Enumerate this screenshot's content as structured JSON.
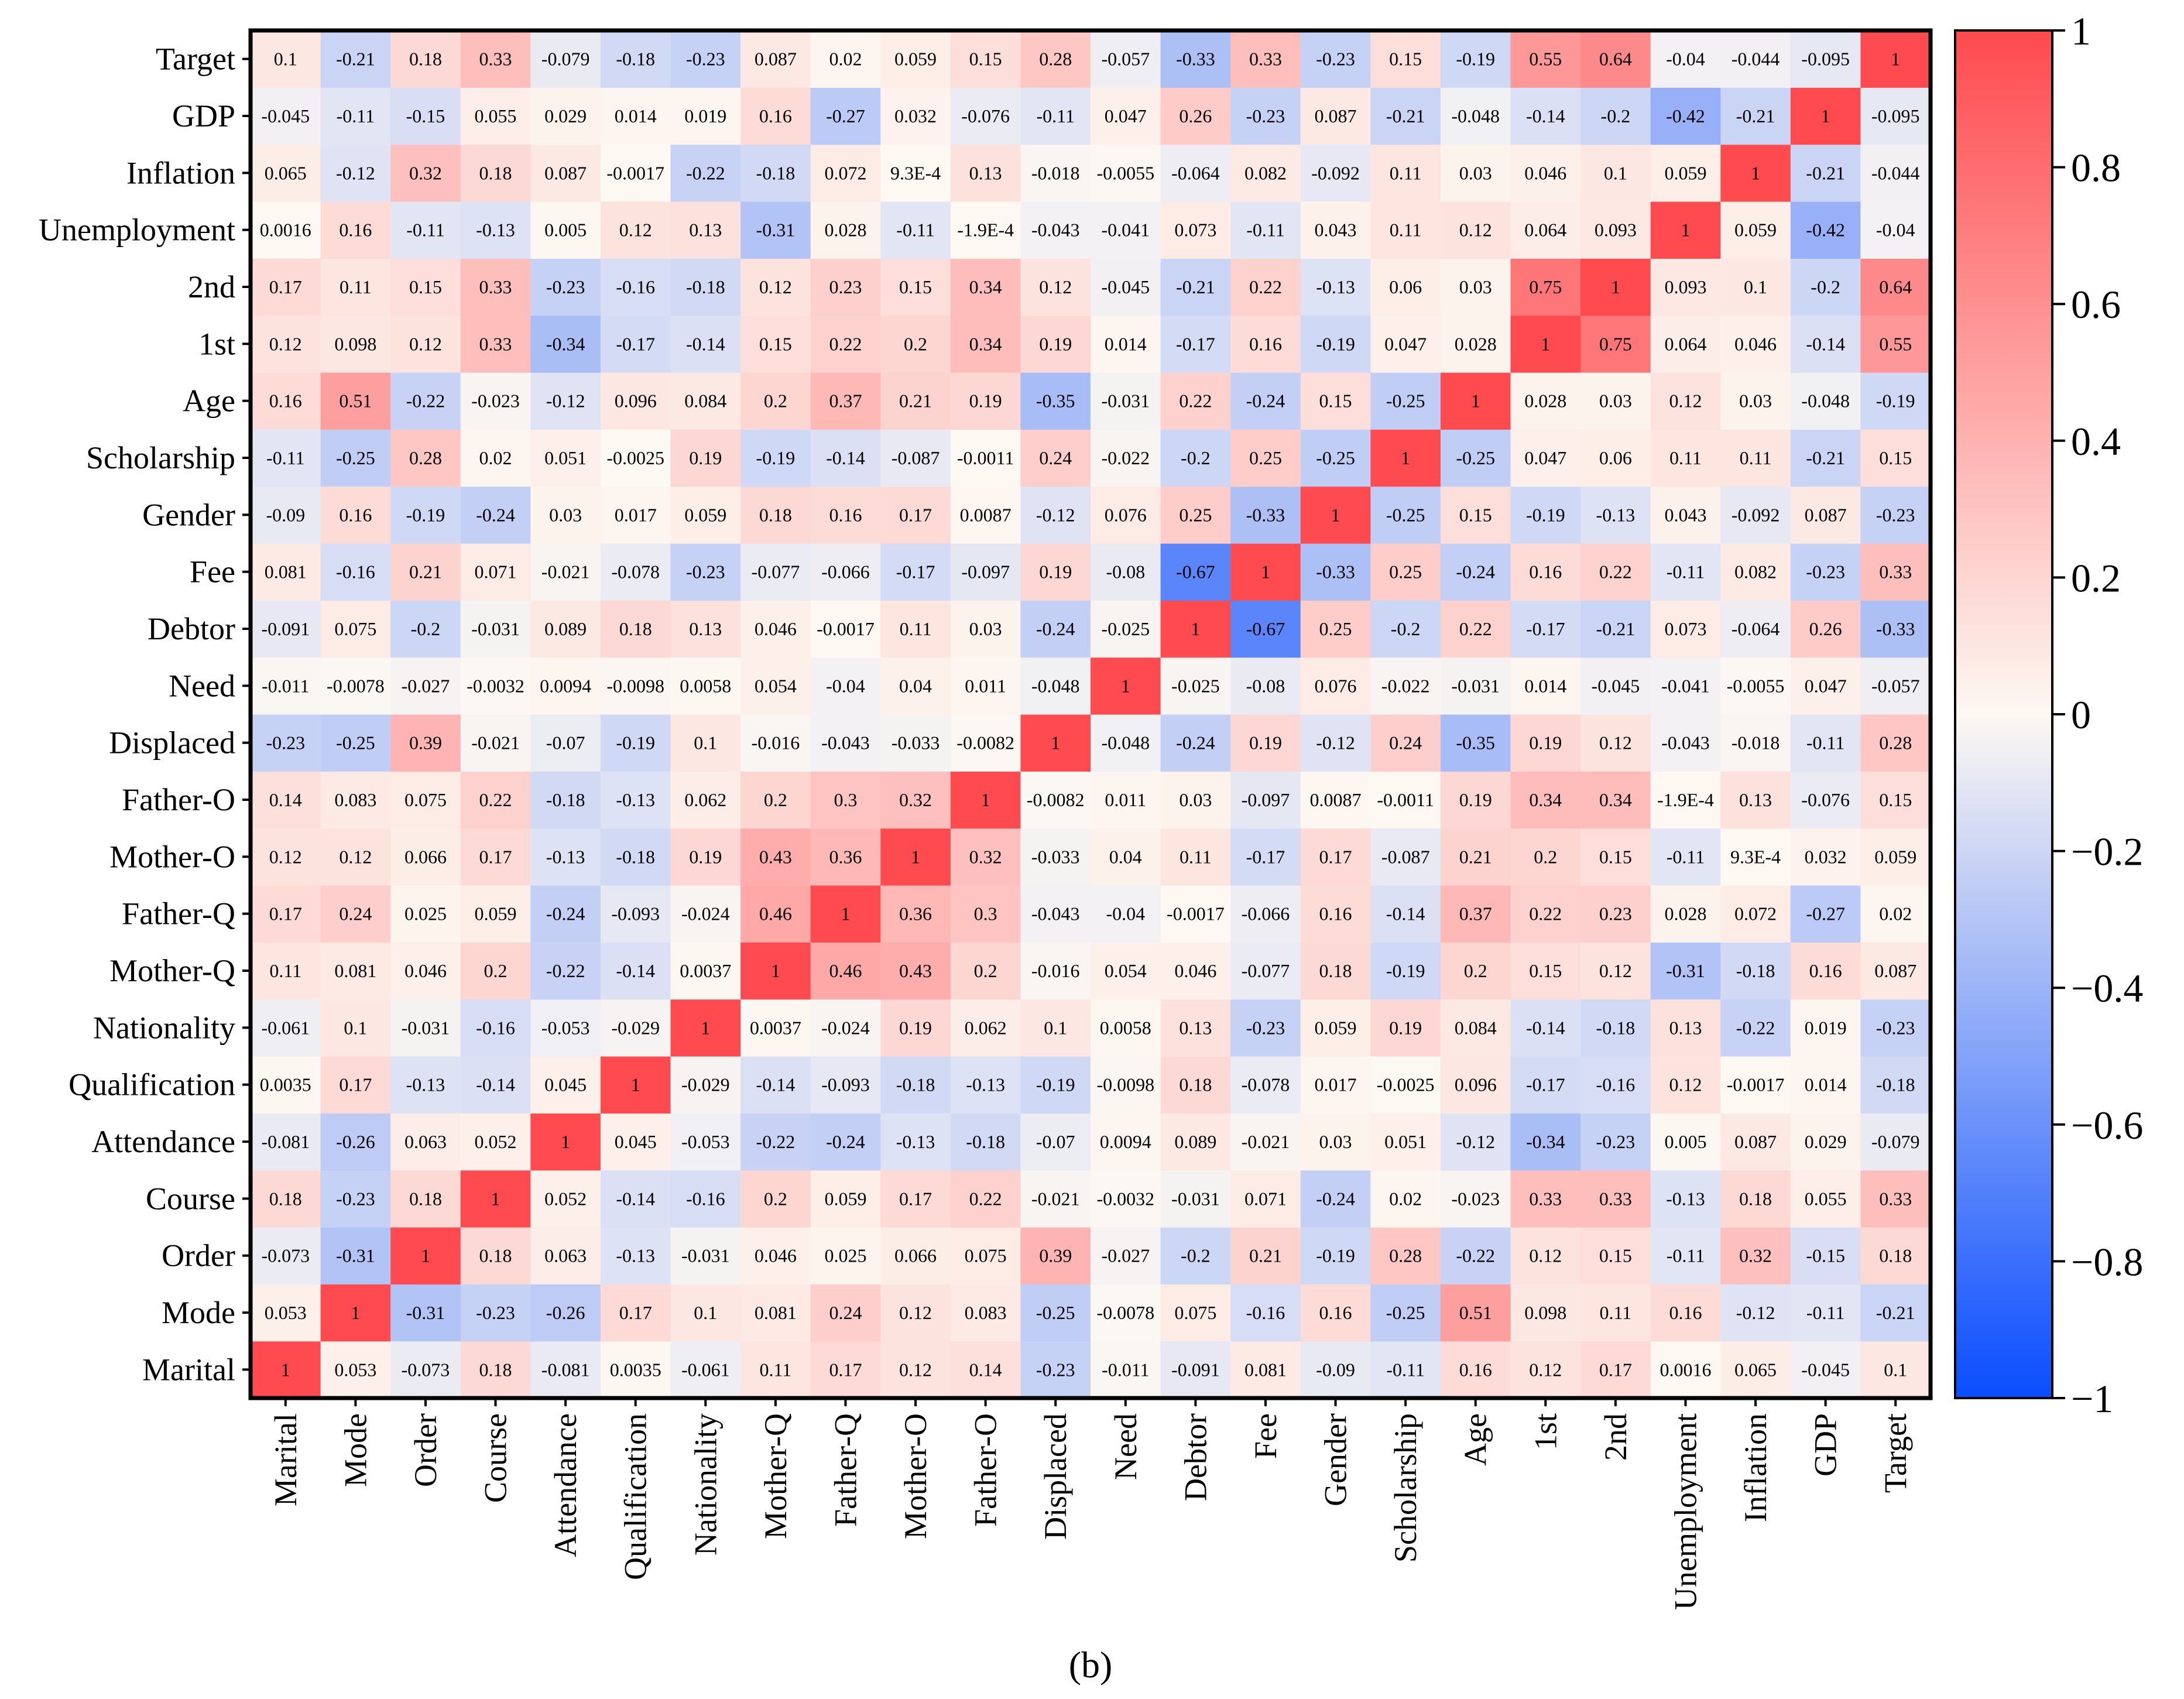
{
  "chart_data": {
    "type": "heatmap",
    "title": "",
    "xlabel": "",
    "ylabel": "",
    "caption": "(b)",
    "variables": [
      "Marital",
      "Mode",
      "Order",
      "Course",
      "Attendance",
      "Qualification",
      "Nationality",
      "Mother-Q",
      "Father-Q",
      "Mother-O",
      "Father-O",
      "Displaced",
      "Need",
      "Debtor",
      "Fee",
      "Gender",
      "Scholarship",
      "Age",
      "1st",
      "2nd",
      "Unemployment",
      "Inflation",
      "GDP",
      "Target"
    ],
    "x_order": "bottom axis left to right",
    "y_order": "left axis top to bottom reversed (Marital at bottom)",
    "value_range": [
      -1,
      1
    ],
    "colorbar": {
      "ticks": [
        "1",
        "0.8",
        "0.6",
        "0.4",
        "0.2",
        "0",
        "−0.2",
        "−0.4",
        "−0.6",
        "−0.8",
        "−1"
      ],
      "low_color": "#0a4dff",
      "mid_color": "#fdf8f2",
      "high_color": "#ff4a4f"
    },
    "cells": [
      [
        "1",
        "0.053",
        "-0.073",
        "0.18",
        "-0.081",
        "0.0035",
        "-0.061",
        "0.11",
        "0.17",
        "0.12",
        "0.14",
        "-0.23",
        "-0.011",
        "-0.091",
        "0.081",
        "-0.09",
        "-0.11",
        "0.16",
        "0.12",
        "0.17",
        "0.0016",
        "0.065",
        "-0.045",
        "0.1"
      ],
      [
        "0.053",
        "1",
        "-0.31",
        "-0.23",
        "-0.26",
        "0.17",
        "0.1",
        "0.081",
        "0.24",
        "0.12",
        "0.083",
        "-0.25",
        "-0.0078",
        "0.075",
        "-0.16",
        "0.16",
        "-0.25",
        "0.51",
        "0.098",
        "0.11",
        "0.16",
        "-0.12",
        "-0.11",
        "-0.21"
      ],
      [
        "-0.073",
        "-0.31",
        "1",
        "0.18",
        "0.063",
        "-0.13",
        "-0.031",
        "0.046",
        "0.025",
        "0.066",
        "0.075",
        "0.39",
        "-0.027",
        "-0.2",
        "0.21",
        "-0.19",
        "0.28",
        "-0.22",
        "0.12",
        "0.15",
        "-0.11",
        "0.32",
        "-0.15",
        "0.18"
      ],
      [
        "0.18",
        "-0.23",
        "0.18",
        "1",
        "0.052",
        "-0.14",
        "-0.16",
        "0.2",
        "0.059",
        "0.17",
        "0.22",
        "-0.021",
        "-0.0032",
        "-0.031",
        "0.071",
        "-0.24",
        "0.02",
        "-0.023",
        "0.33",
        "0.33",
        "-0.13",
        "0.18",
        "0.055",
        "0.33"
      ],
      [
        "-0.081",
        "-0.26",
        "0.063",
        "0.052",
        "1",
        "0.045",
        "-0.053",
        "-0.22",
        "-0.24",
        "-0.13",
        "-0.18",
        "-0.07",
        "0.0094",
        "0.089",
        "-0.021",
        "0.03",
        "0.051",
        "-0.12",
        "-0.34",
        "-0.23",
        "0.005",
        "0.087",
        "0.029",
        "-0.079"
      ],
      [
        "0.0035",
        "0.17",
        "-0.13",
        "-0.14",
        "0.045",
        "1",
        "-0.029",
        "-0.14",
        "-0.093",
        "-0.18",
        "-0.13",
        "-0.19",
        "-0.0098",
        "0.18",
        "-0.078",
        "0.017",
        "-0.0025",
        "0.096",
        "-0.17",
        "-0.16",
        "0.12",
        "-0.0017",
        "0.014",
        "-0.18"
      ],
      [
        "-0.061",
        "0.1",
        "-0.031",
        "-0.16",
        "-0.053",
        "-0.029",
        "1",
        "0.0037",
        "-0.024",
        "0.19",
        "0.062",
        "0.1",
        "0.0058",
        "0.13",
        "-0.23",
        "0.059",
        "0.19",
        "0.084",
        "-0.14",
        "-0.18",
        "0.13",
        "-0.22",
        "0.019",
        "-0.23"
      ],
      [
        "0.11",
        "0.081",
        "0.046",
        "0.2",
        "-0.22",
        "-0.14",
        "0.0037",
        "1",
        "0.46",
        "0.43",
        "0.2",
        "-0.016",
        "0.054",
        "0.046",
        "-0.077",
        "0.18",
        "-0.19",
        "0.2",
        "0.15",
        "0.12",
        "-0.31",
        "-0.18",
        "0.16",
        "0.087"
      ],
      [
        "0.17",
        "0.24",
        "0.025",
        "0.059",
        "-0.24",
        "-0.093",
        "-0.024",
        "0.46",
        "1",
        "0.36",
        "0.3",
        "-0.043",
        "-0.04",
        "-0.0017",
        "-0.066",
        "0.16",
        "-0.14",
        "0.37",
        "0.22",
        "0.23",
        "0.028",
        "0.072",
        "-0.27",
        "0.02"
      ],
      [
        "0.12",
        "0.12",
        "0.066",
        "0.17",
        "-0.13",
        "-0.18",
        "0.19",
        "0.43",
        "0.36",
        "1",
        "0.32",
        "-0.033",
        "0.04",
        "0.11",
        "-0.17",
        "0.17",
        "-0.087",
        "0.21",
        "0.2",
        "0.15",
        "-0.11",
        "9.3E-4",
        "0.032",
        "0.059"
      ],
      [
        "0.14",
        "0.083",
        "0.075",
        "0.22",
        "-0.18",
        "-0.13",
        "0.062",
        "0.2",
        "0.3",
        "0.32",
        "1",
        "-0.0082",
        "0.011",
        "0.03",
        "-0.097",
        "0.0087",
        "-0.0011",
        "0.19",
        "0.34",
        "0.34",
        "-1.9E-4",
        "0.13",
        "-0.076",
        "0.15"
      ],
      [
        "-0.23",
        "-0.25",
        "0.39",
        "-0.021",
        "-0.07",
        "-0.19",
        "0.1",
        "-0.016",
        "-0.043",
        "-0.033",
        "-0.0082",
        "1",
        "-0.048",
        "-0.24",
        "0.19",
        "-0.12",
        "0.24",
        "-0.35",
        "0.19",
        "0.12",
        "-0.043",
        "-0.018",
        "-0.11",
        "0.28"
      ],
      [
        "-0.011",
        "-0.0078",
        "-0.027",
        "-0.0032",
        "0.0094",
        "-0.0098",
        "0.0058",
        "0.054",
        "-0.04",
        "0.04",
        "0.011",
        "-0.048",
        "1",
        "-0.025",
        "-0.08",
        "0.076",
        "-0.022",
        "-0.031",
        "0.014",
        "-0.045",
        "-0.041",
        "-0.0055",
        "0.047",
        "-0.057"
      ],
      [
        "-0.091",
        "0.075",
        "-0.2",
        "-0.031",
        "0.089",
        "0.18",
        "0.13",
        "0.046",
        "-0.0017",
        "0.11",
        "0.03",
        "-0.24",
        "-0.025",
        "1",
        "-0.67",
        "0.25",
        "-0.2",
        "0.22",
        "-0.17",
        "-0.21",
        "0.073",
        "-0.064",
        "0.26",
        "-0.33"
      ],
      [
        "0.081",
        "-0.16",
        "0.21",
        "0.071",
        "-0.021",
        "-0.078",
        "-0.23",
        "-0.077",
        "-0.066",
        "-0.17",
        "-0.097",
        "0.19",
        "-0.08",
        "-0.67",
        "1",
        "-0.33",
        "0.25",
        "-0.24",
        "0.16",
        "0.22",
        "-0.11",
        "0.082",
        "-0.23",
        "0.33"
      ],
      [
        "-0.09",
        "0.16",
        "-0.19",
        "-0.24",
        "0.03",
        "0.017",
        "0.059",
        "0.18",
        "0.16",
        "0.17",
        "0.0087",
        "-0.12",
        "0.076",
        "0.25",
        "-0.33",
        "1",
        "-0.25",
        "0.15",
        "-0.19",
        "-0.13",
        "0.043",
        "-0.092",
        "0.087",
        "-0.23"
      ],
      [
        "-0.11",
        "-0.25",
        "0.28",
        "0.02",
        "0.051",
        "-0.0025",
        "0.19",
        "-0.19",
        "-0.14",
        "-0.087",
        "-0.0011",
        "0.24",
        "-0.022",
        "-0.2",
        "0.25",
        "-0.25",
        "1",
        "-0.25",
        "0.047",
        "0.06",
        "0.11",
        "0.11",
        "-0.21",
        "0.15"
      ],
      [
        "0.16",
        "0.51",
        "-0.22",
        "-0.023",
        "-0.12",
        "0.096",
        "0.084",
        "0.2",
        "0.37",
        "0.21",
        "0.19",
        "-0.35",
        "-0.031",
        "0.22",
        "-0.24",
        "0.15",
        "-0.25",
        "1",
        "0.028",
        "0.03",
        "0.12",
        "0.03",
        "-0.048",
        "-0.19"
      ],
      [
        "0.12",
        "0.098",
        "0.12",
        "0.33",
        "-0.34",
        "-0.17",
        "-0.14",
        "0.15",
        "0.22",
        "0.2",
        "0.34",
        "0.19",
        "0.014",
        "-0.17",
        "0.16",
        "-0.19",
        "0.047",
        "0.028",
        "1",
        "0.75",
        "0.064",
        "0.046",
        "-0.14",
        "0.55"
      ],
      [
        "0.17",
        "0.11",
        "0.15",
        "0.33",
        "-0.23",
        "-0.16",
        "-0.18",
        "0.12",
        "0.23",
        "0.15",
        "0.34",
        "0.12",
        "-0.045",
        "-0.21",
        "0.22",
        "-0.13",
        "0.06",
        "0.03",
        "0.75",
        "1",
        "0.093",
        "0.1",
        "-0.2",
        "0.64"
      ],
      [
        "0.0016",
        "0.16",
        "-0.11",
        "-0.13",
        "0.005",
        "0.12",
        "0.13",
        "-0.31",
        "0.028",
        "-0.11",
        "-1.9E-4",
        "-0.043",
        "-0.041",
        "0.073",
        "-0.11",
        "0.043",
        "0.11",
        "0.12",
        "0.064",
        "0.093",
        "1",
        "0.059",
        "-0.42",
        "-0.04"
      ],
      [
        "0.065",
        "-0.12",
        "0.32",
        "0.18",
        "0.087",
        "-0.0017",
        "-0.22",
        "-0.18",
        "0.072",
        "9.3E-4",
        "0.13",
        "-0.018",
        "-0.0055",
        "-0.064",
        "0.082",
        "-0.092",
        "0.11",
        "0.03",
        "0.046",
        "0.1",
        "0.059",
        "1",
        "-0.21",
        "-0.044"
      ],
      [
        "-0.045",
        "-0.11",
        "-0.15",
        "0.055",
        "0.029",
        "0.014",
        "0.019",
        "0.16",
        "-0.27",
        "0.032",
        "-0.076",
        "-0.11",
        "0.047",
        "0.26",
        "-0.23",
        "0.087",
        "-0.21",
        "-0.048",
        "-0.14",
        "-0.2",
        "-0.42",
        "-0.21",
        "1",
        "-0.095"
      ],
      [
        "0.1",
        "-0.21",
        "0.18",
        "0.33",
        "-0.079",
        "-0.18",
        "-0.23",
        "0.087",
        "0.02",
        "0.059",
        "0.15",
        "0.28",
        "-0.057",
        "-0.33",
        "0.33",
        "-0.23",
        "0.15",
        "-0.19",
        "0.55",
        "0.64",
        "-0.04",
        "-0.044",
        "-0.095",
        "1"
      ]
    ]
  }
}
